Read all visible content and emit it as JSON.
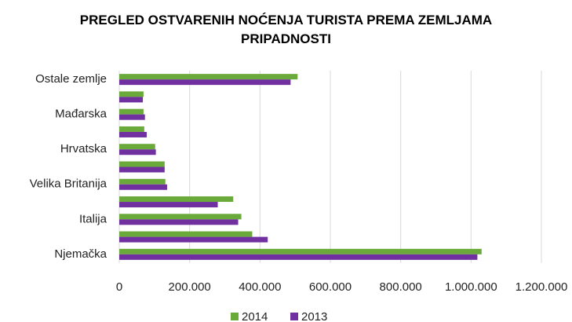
{
  "chart_data": {
    "type": "bar",
    "orientation": "horizontal",
    "title": "PREGLED OSTVARENIH NOĆENJA TURISTA PREMA ZEMLJAMA PRIPADNOSTI",
    "categories": [
      "Njemačka",
      null,
      "Italija",
      null,
      "Velika Britanija",
      null,
      "Hrvatska",
      null,
      "Mađarska",
      null,
      "Ostale zemlje"
    ],
    "series": [
      {
        "name": "2014",
        "color": "#6aaa3a",
        "values": [
          1030000,
          378000,
          347000,
          324000,
          131000,
          129000,
          102000,
          71000,
          69000,
          69000,
          507000
        ]
      },
      {
        "name": "2013",
        "color": "#7030a0",
        "values": [
          1018000,
          422000,
          338000,
          280000,
          136000,
          129000,
          104000,
          78000,
          73000,
          67000,
          487000
        ]
      }
    ],
    "xlim": [
      0,
      1200000
    ],
    "xticks": [
      0,
      {
        "value": 200000,
        "label": "200.000"
      },
      {
        "value": 400000,
        "label": "400.000"
      },
      {
        "value": 600000,
        "label": "600.000"
      },
      {
        "value": 800000,
        "label": "800.000"
      },
      {
        "value": 1000000,
        "label": "1.000.000"
      },
      {
        "value": 1200000,
        "label": "1.200.000"
      }
    ],
    "grid": true,
    "legend": "bottom"
  }
}
